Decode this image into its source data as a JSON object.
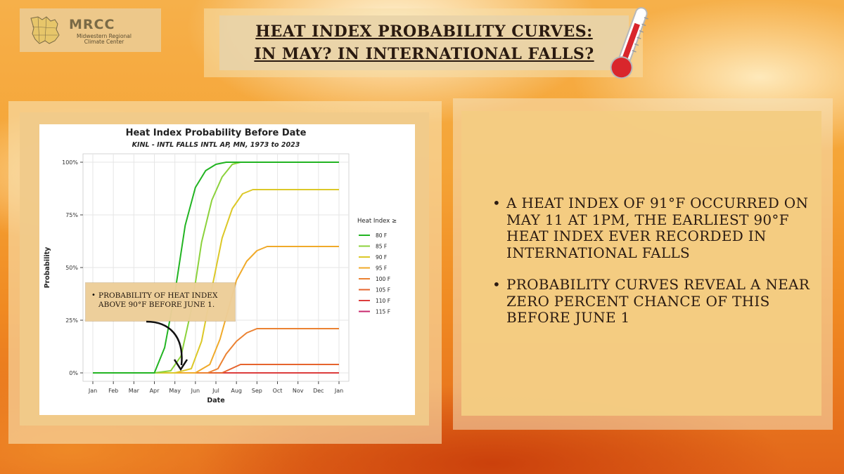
{
  "logo": {
    "name": "MRCC",
    "subtitle": "Midwestern Regional Climate Center",
    "icon": "midwest-map-icon"
  },
  "header": {
    "title_line1": "HEAT INDEX PROBABILITY CURVES:",
    "title_line2": "IN MAY? IN INTERNATIONAL FALLS?",
    "icon": "thermometer-icon"
  },
  "callout": {
    "text": "PROBABILITY OF HEAT INDEX ABOVE 90°F BEFORE JUNE 1."
  },
  "bullets": [
    "A HEAT INDEX OF 91°F OCCURRED ON MAY 11 AT 1PM, THE EARLIEST 90°F HEAT INDEX EVER RECORDED IN INTERNATIONAL FALLS",
    "PROBABILITY CURVES REVEAL A NEAR ZERO PERCENT CHANCE OF THIS BEFORE JUNE 1"
  ],
  "chart_data": {
    "type": "line",
    "title": "Heat Index Probability Before Date",
    "subtitle": "KINL - INTL FALLS INTL AP, MN, 1973 to 2023",
    "xlabel": "Date",
    "ylabel": "Probability",
    "x_ticks": [
      "Jan",
      "Feb",
      "Mar",
      "Apr",
      "May",
      "Jun",
      "Jul",
      "Aug",
      "Sep",
      "Oct",
      "Nov",
      "Dec",
      "Jan"
    ],
    "y_ticks": [
      "0%",
      "25%",
      "50%",
      "75%",
      "100%"
    ],
    "ylim": [
      0,
      100
    ],
    "grid": true,
    "legend_title": "Heat Index ≥",
    "legend_position": "right",
    "series": [
      {
        "name": "80 F",
        "color": "#22b422",
        "points": [
          [
            0,
            0
          ],
          [
            3,
            0
          ],
          [
            3.5,
            12
          ],
          [
            4,
            38
          ],
          [
            4.5,
            70
          ],
          [
            5,
            88
          ],
          [
            5.5,
            96
          ],
          [
            6,
            99
          ],
          [
            6.5,
            100
          ],
          [
            7,
            100
          ],
          [
            12,
            100
          ]
        ]
      },
      {
        "name": "85 F",
        "color": "#8cd23c",
        "points": [
          [
            0,
            0
          ],
          [
            3,
            0
          ],
          [
            3.8,
            1
          ],
          [
            4.3,
            8
          ],
          [
            4.8,
            30
          ],
          [
            5.3,
            62
          ],
          [
            5.8,
            82
          ],
          [
            6.3,
            93
          ],
          [
            6.8,
            99
          ],
          [
            7.2,
            100
          ],
          [
            12,
            100
          ]
        ]
      },
      {
        "name": "90 F",
        "color": "#dcc828",
        "points": [
          [
            0,
            0
          ],
          [
            4,
            0
          ],
          [
            4.8,
            2
          ],
          [
            5.3,
            15
          ],
          [
            5.8,
            40
          ],
          [
            6.3,
            64
          ],
          [
            6.8,
            78
          ],
          [
            7.3,
            85
          ],
          [
            7.8,
            87
          ],
          [
            12,
            87
          ]
        ]
      },
      {
        "name": "95 F",
        "color": "#f0aa2a",
        "points": [
          [
            0,
            0
          ],
          [
            5,
            0
          ],
          [
            5.7,
            4
          ],
          [
            6.2,
            16
          ],
          [
            6.6,
            30
          ],
          [
            7,
            44
          ],
          [
            7.5,
            53
          ],
          [
            8,
            58
          ],
          [
            8.5,
            60
          ],
          [
            12,
            60
          ]
        ]
      },
      {
        "name": "100 F",
        "color": "#eb8232",
        "points": [
          [
            0,
            0
          ],
          [
            5.6,
            0
          ],
          [
            6.1,
            2
          ],
          [
            6.5,
            9
          ],
          [
            7,
            15
          ],
          [
            7.5,
            19
          ],
          [
            8,
            21
          ],
          [
            12,
            21
          ]
        ]
      },
      {
        "name": "105 F",
        "color": "#e6642d",
        "points": [
          [
            0,
            0
          ],
          [
            6.3,
            0
          ],
          [
            7.2,
            4
          ],
          [
            12,
            4
          ]
        ]
      },
      {
        "name": "110 F",
        "color": "#dc3c3c",
        "points": [
          [
            0,
            0
          ],
          [
            12,
            0
          ]
        ]
      },
      {
        "name": "115 F",
        "color": "#c8286e",
        "points": [
          [
            0,
            0
          ],
          [
            12,
            0
          ]
        ]
      }
    ]
  },
  "colors": {
    "accent": "#f08a22",
    "panel": "#f3cc82",
    "text": "#2b1b12"
  }
}
